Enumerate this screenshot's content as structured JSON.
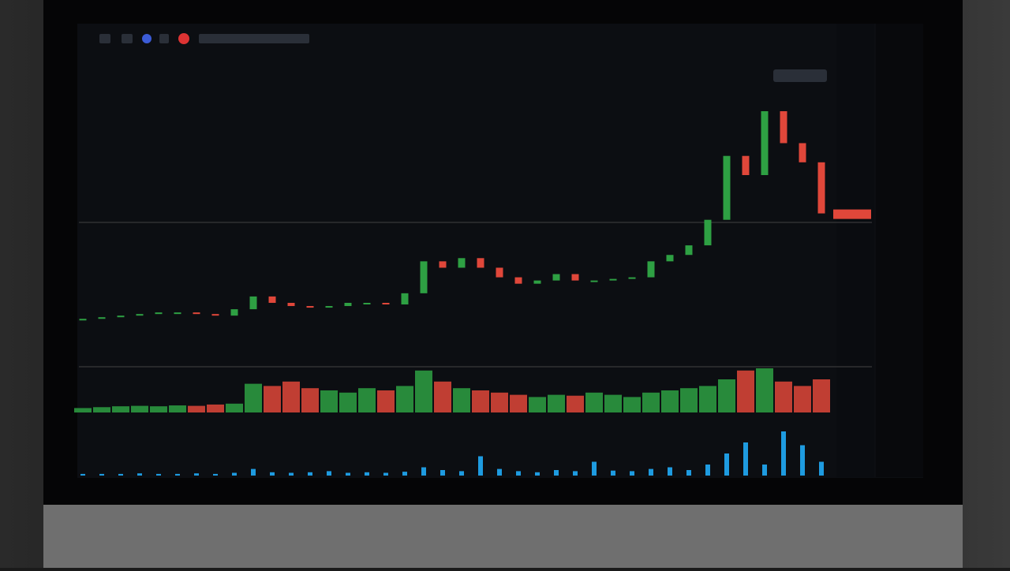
{
  "chart_data": {
    "type": "candlestick",
    "open": [
      14.5,
      15,
      15.5,
      16,
      16.5,
      17,
      17,
      16.5,
      16,
      18,
      22,
      20,
      19,
      18.5,
      19,
      20,
      20,
      19.5,
      23,
      33,
      31,
      34,
      31,
      28,
      26,
      27,
      29,
      27,
      27,
      27.5,
      28,
      33,
      35,
      38,
      46,
      66,
      60,
      80,
      70,
      64
    ],
    "close": [
      15,
      15.5,
      16,
      16.5,
      17,
      17,
      16.5,
      16,
      18,
      22,
      20,
      19,
      18.5,
      19,
      20,
      20,
      19.5,
      23,
      33,
      31,
      34,
      31,
      28,
      26,
      27,
      29,
      27,
      27,
      27.5,
      28,
      33,
      35,
      38,
      46,
      66,
      60,
      80,
      70,
      64,
      48
    ],
    "ylim": [
      0,
      100
    ],
    "volume": [
      10,
      12,
      14,
      15,
      14,
      16,
      15,
      18,
      20,
      65,
      60,
      70,
      55,
      50,
      45,
      55,
      50,
      60,
      95,
      70,
      55,
      50,
      45,
      40,
      35,
      40,
      38,
      45,
      40,
      35,
      45,
      50,
      55,
      60,
      75,
      95,
      100,
      70,
      60,
      75
    ],
    "volume_ylim": [
      0,
      100
    ],
    "indicator": [
      3,
      3,
      3,
      4,
      3,
      3,
      4,
      3,
      5,
      12,
      6,
      5,
      6,
      8,
      5,
      6,
      5,
      7,
      15,
      10,
      8,
      35,
      12,
      8,
      6,
      10,
      8,
      25,
      9,
      8,
      12,
      15,
      10,
      20,
      40,
      60,
      20,
      80,
      55,
      25
    ],
    "indicator_ylim": [
      0,
      100
    ],
    "up_color": "#2ea043",
    "down_color": "#e0473a",
    "indicator_color": "#1e9be0"
  }
}
